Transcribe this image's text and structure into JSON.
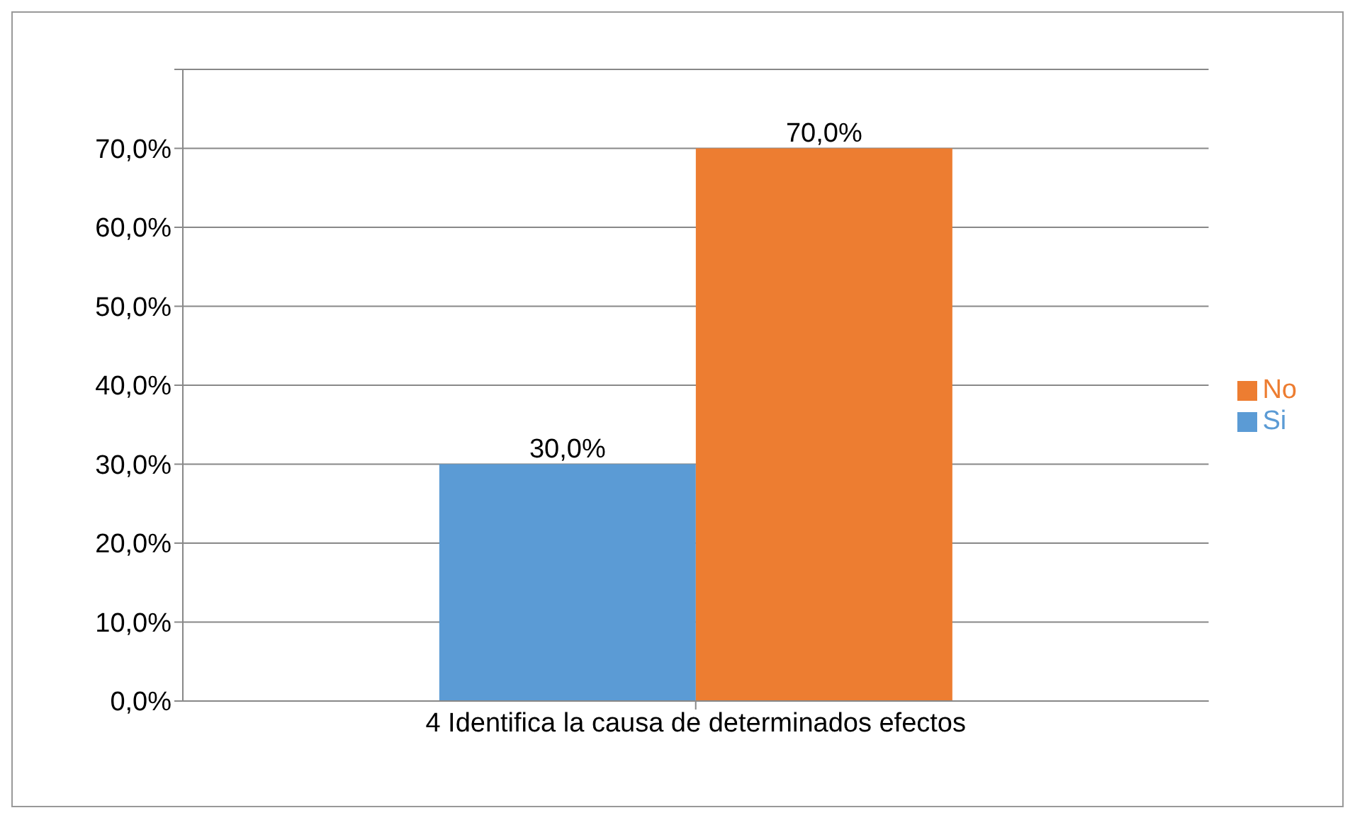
{
  "chart_data": {
    "type": "bar",
    "categories": [
      "4 Identifica la causa de determinados efectos"
    ],
    "series": [
      {
        "name": "Si",
        "color": "#5b9bd5",
        "values": [
          30
        ],
        "value_labels": [
          "30,0%"
        ]
      },
      {
        "name": "No",
        "color": "#ed7d31",
        "values": [
          70
        ],
        "value_labels": [
          "70,0%"
        ]
      }
    ],
    "ylim": [
      0,
      80
    ],
    "yticks": [
      {
        "value": 0,
        "label": "0,0%"
      },
      {
        "value": 10,
        "label": "10,0%"
      },
      {
        "value": 20,
        "label": "20,0%"
      },
      {
        "value": 30,
        "label": "30,0%"
      },
      {
        "value": 40,
        "label": "40,0%"
      },
      {
        "value": 50,
        "label": "50,0%"
      },
      {
        "value": 60,
        "label": "60,0%"
      },
      {
        "value": 70,
        "label": "70,0%"
      },
      {
        "value": 80,
        "label": null
      }
    ],
    "grid": "y",
    "legend": "right"
  }
}
